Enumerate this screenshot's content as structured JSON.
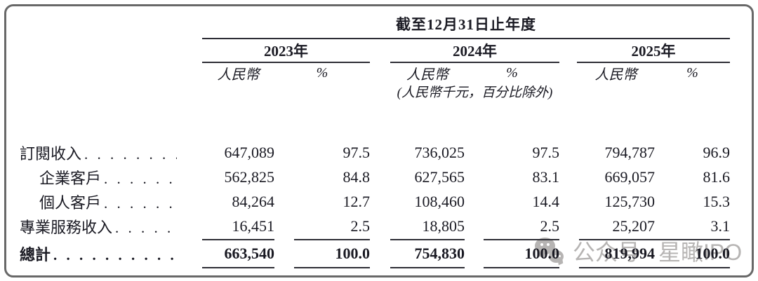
{
  "colors": {
    "text": "#1a1a23",
    "rule": "#2d2d35",
    "frame_border": "#686868",
    "watermark": "#b6b4b3",
    "background": "#ffffff"
  },
  "table": {
    "spanner_title": "截至12月31日止年度",
    "unit_note": "(人民幣千元，百分比除外)",
    "col_groups": [
      {
        "year": "2023年",
        "rmb_header": "人民幣",
        "pct_header": "%"
      },
      {
        "year": "2024年",
        "rmb_header": "人民幣",
        "pct_header": "%"
      },
      {
        "year": "2025年",
        "rmb_header": "人民幣",
        "pct_header": "%"
      }
    ],
    "rows": [
      {
        "label": "訂閱收入",
        "dots": ". . . . . . . . . . . . . . . . . . . . . . . .",
        "values": [
          "647,089",
          "97.5",
          "736,025",
          "97.5",
          "794,787",
          "96.9"
        ]
      },
      {
        "label": "企業客戶",
        "dots": ". . . . . . . . . . . . . . . . . . . . . . . .",
        "values": [
          "562,825",
          "84.8",
          "627,565",
          "83.1",
          "669,057",
          "81.6"
        ]
      },
      {
        "label": "個人客戶",
        "dots": ". . . . . . . . . . . . . . . . . . . . . . . .",
        "values": [
          "84,264",
          "12.7",
          "108,460",
          "14.4",
          "125,730",
          "15.3"
        ]
      },
      {
        "label": "專業服務收入",
        "dots": ". . . . . . . . . . . . . . . . . . . . . . . .",
        "values": [
          "16,451",
          "2.5",
          "18,805",
          "2.5",
          "25,207",
          "3.1"
        ]
      }
    ],
    "total_row": {
      "label": "總計",
      "dots": ". . . . . . . . . . . . . . . . . . . . . . . . . . . .",
      "values": [
        "663,540",
        "100.0",
        "754,830",
        "100.0",
        "819,994",
        "100.0"
      ]
    }
  },
  "watermark": {
    "icon": "wechat-icon",
    "platform_label": "公众号",
    "account_name": "星瞰IPO"
  }
}
